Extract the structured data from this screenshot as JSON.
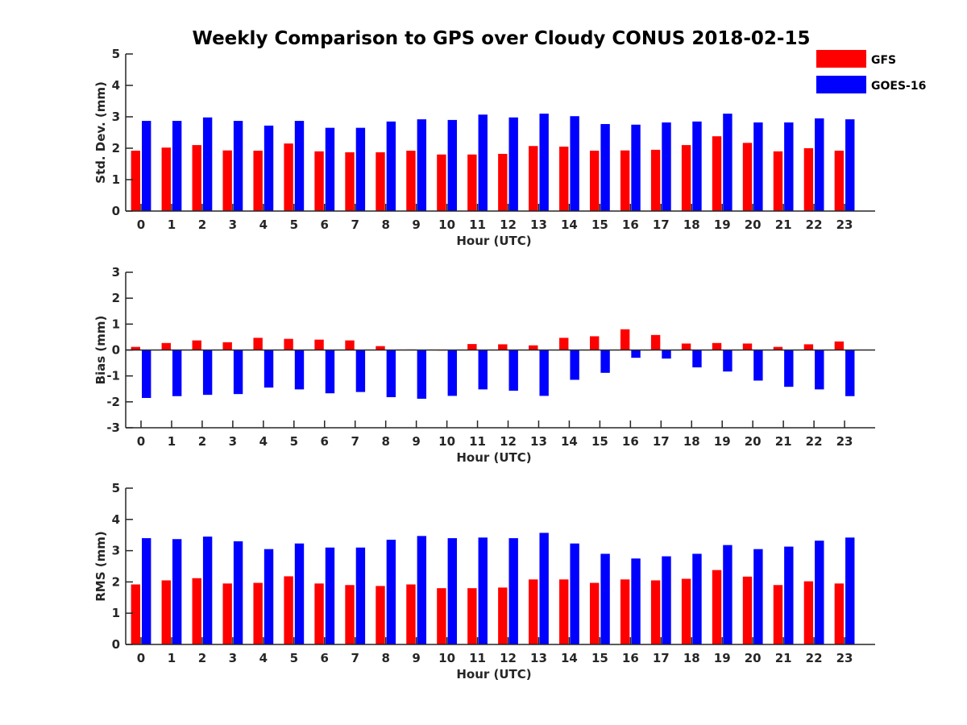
{
  "title": "Weekly Comparison to GPS over Cloudy CONUS 2018-02-15",
  "colors": {
    "GFS": "#ff0000",
    "GOES-16": "#0000ff"
  },
  "legend": {
    "placement": "top-right",
    "entries": [
      "GFS",
      "GOES-16"
    ]
  },
  "chart_data": [
    {
      "type": "bar",
      "categories": [
        "0",
        "1",
        "2",
        "3",
        "4",
        "5",
        "6",
        "7",
        "8",
        "9",
        "10",
        "11",
        "12",
        "13",
        "14",
        "15",
        "16",
        "17",
        "18",
        "19",
        "20",
        "21",
        "22",
        "23"
      ],
      "xlabel": "Hour (UTC)",
      "ylabel": "Std. Dev. (mm)",
      "ylim": [
        0,
        5
      ],
      "yticks": [
        "0",
        "1",
        "2",
        "3",
        "4",
        "5"
      ],
      "grid": false,
      "series": [
        {
          "name": "GFS",
          "values": [
            1.92,
            2.02,
            2.1,
            1.93,
            1.92,
            2.15,
            1.9,
            1.87,
            1.87,
            1.92,
            1.8,
            1.8,
            1.82,
            2.07,
            2.05,
            1.92,
            1.93,
            1.95,
            2.1,
            2.38,
            2.17,
            1.9,
            2.0,
            1.92
          ]
        },
        {
          "name": "GOES-16",
          "values": [
            2.87,
            2.87,
            2.98,
            2.87,
            2.72,
            2.87,
            2.65,
            2.65,
            2.85,
            2.92,
            2.9,
            3.07,
            2.98,
            3.1,
            3.02,
            2.77,
            2.75,
            2.82,
            2.85,
            3.1,
            2.82,
            2.82,
            2.95,
            2.92
          ]
        }
      ]
    },
    {
      "type": "bar",
      "categories": [
        "0",
        "1",
        "2",
        "3",
        "4",
        "5",
        "6",
        "7",
        "8",
        "9",
        "10",
        "11",
        "12",
        "13",
        "14",
        "15",
        "16",
        "17",
        "18",
        "19",
        "20",
        "21",
        "22",
        "23"
      ],
      "xlabel": "Hour (UTC)",
      "ylabel": "Bias (mm)",
      "ylim": [
        -3,
        3
      ],
      "yticks": [
        "-3",
        "-2",
        "-1",
        "0",
        "1",
        "2",
        "3"
      ],
      "grid": false,
      "series": [
        {
          "name": "GFS",
          "values": [
            0.12,
            0.27,
            0.37,
            0.3,
            0.47,
            0.43,
            0.4,
            0.37,
            0.15,
            0.02,
            -0.02,
            0.23,
            0.22,
            0.18,
            0.47,
            0.53,
            0.8,
            0.58,
            0.25,
            0.27,
            0.25,
            0.12,
            0.22,
            0.33
          ]
        },
        {
          "name": "GOES-16",
          "values": [
            -1.85,
            -1.78,
            -1.73,
            -1.7,
            -1.45,
            -1.52,
            -1.67,
            -1.62,
            -1.82,
            -1.88,
            -1.77,
            -1.52,
            -1.57,
            -1.77,
            -1.15,
            -0.88,
            -0.3,
            -0.33,
            -0.67,
            -0.83,
            -1.18,
            -1.42,
            -1.52,
            -1.78
          ]
        }
      ]
    },
    {
      "type": "bar",
      "categories": [
        "0",
        "1",
        "2",
        "3",
        "4",
        "5",
        "6",
        "7",
        "8",
        "9",
        "10",
        "11",
        "12",
        "13",
        "14",
        "15",
        "16",
        "17",
        "18",
        "19",
        "20",
        "21",
        "22",
        "23"
      ],
      "xlabel": "Hour (UTC)",
      "ylabel": "RMS (mm)",
      "ylim": [
        0,
        5
      ],
      "yticks": [
        "0",
        "1",
        "2",
        "3",
        "4",
        "5"
      ],
      "grid": false,
      "series": [
        {
          "name": "GFS",
          "values": [
            1.92,
            2.05,
            2.12,
            1.95,
            1.97,
            2.18,
            1.95,
            1.9,
            1.87,
            1.92,
            1.8,
            1.8,
            1.82,
            2.08,
            2.08,
            1.97,
            2.08,
            2.05,
            2.1,
            2.38,
            2.17,
            1.9,
            2.02,
            1.95
          ]
        },
        {
          "name": "GOES-16",
          "values": [
            3.4,
            3.37,
            3.45,
            3.3,
            3.05,
            3.23,
            3.1,
            3.1,
            3.35,
            3.47,
            3.4,
            3.42,
            3.4,
            3.57,
            3.23,
            2.9,
            2.75,
            2.82,
            2.9,
            3.18,
            3.05,
            3.13,
            3.32,
            3.42
          ]
        }
      ]
    }
  ]
}
